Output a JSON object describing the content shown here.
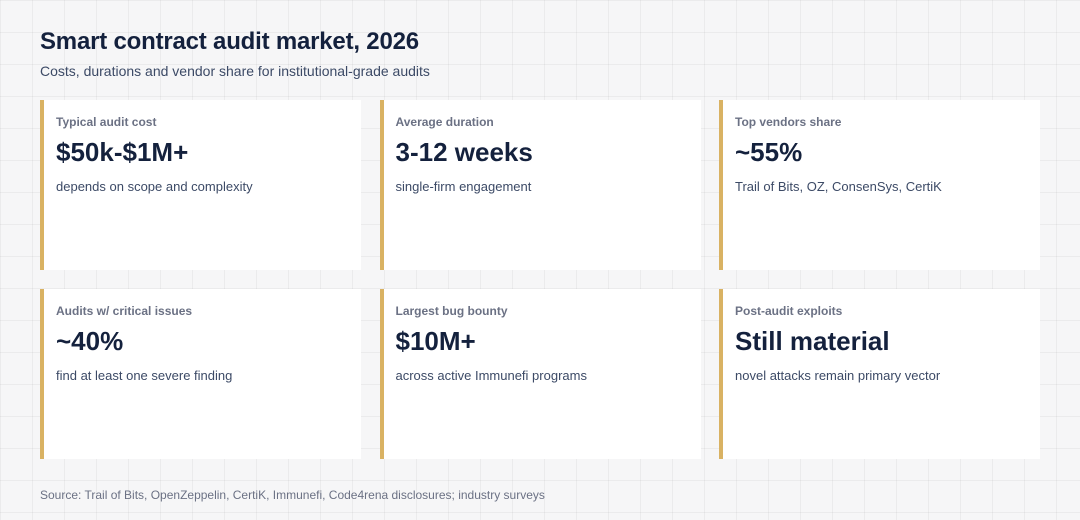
{
  "header": {
    "title": "Smart contract audit market, 2026",
    "subtitle": "Costs, durations and vendor share for institutional-grade audits"
  },
  "accent_color": "#d9b263",
  "cards": [
    {
      "label": "Typical audit cost",
      "value": "$50k-$1M+",
      "note": "depends on scope and complexity"
    },
    {
      "label": "Average duration",
      "value": "3-12 weeks",
      "note": "single-firm engagement"
    },
    {
      "label": "Top vendors share",
      "value": "~55%",
      "note": "Trail of Bits, OZ, ConsenSys, CertiK"
    },
    {
      "label": "Audits w/ critical issues",
      "value": "~40%",
      "note": "find at least one severe finding"
    },
    {
      "label": "Largest bug bounty",
      "value": "$10M+",
      "note": "across active Immunefi programs"
    },
    {
      "label": "Post-audit exploits",
      "value": "Still material",
      "note": "novel attacks remain primary vector"
    }
  ],
  "footer": {
    "source": "Source: Trail of Bits, OpenZeppelin, CertiK, Immunefi, Code4rena disclosures; industry surveys"
  }
}
